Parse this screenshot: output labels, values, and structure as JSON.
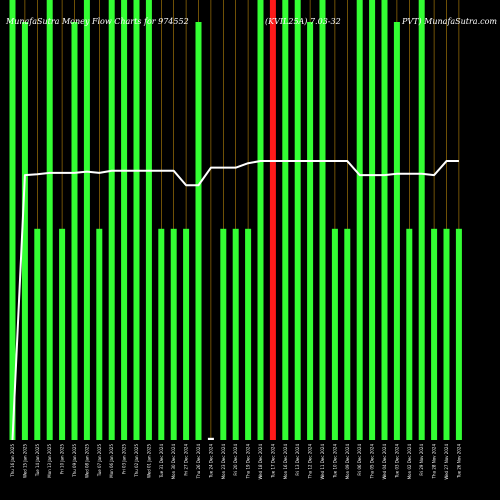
{
  "chart_data": {
    "type": "bar",
    "title_left": "MunafaSutra  Money Flow  Charts for 974552",
    "title_mid": "(KVIL25A) 7.03-32",
    "title_right": "PVT) MunafaSutra.com",
    "categories": [
      "Thu 16 Jan 2025",
      "Wed 15 Jan 2025",
      "Tue 14 Jan 2025",
      "Mon 13 Jan 2025",
      "Fri 10 Jan 2025",
      "Thu 09 Jan 2025",
      "Wed 08 Jan 2025",
      "Tue 07 Jan 2025",
      "Mon 06 Jan 2025",
      "Fri 03 Jan 2025",
      "Thu 02 Jan 2025",
      "Wed 01 Jan 2025",
      "Tue 31 Dec 2024",
      "Mon 30 Dec 2024",
      "Fri 27 Dec 2024",
      "Thu 26 Dec 2024",
      "Tue 24 Dec 2024",
      "Mon 23 Dec 2024",
      "Fri 20 Dec 2024",
      "Thu 19 Dec 2024",
      "Wed 18 Dec 2024",
      "Tue 17 Dec 2024",
      "Mon 16 Dec 2024",
      "Fri 13 Dec 2024",
      "Thu 12 Dec 2024",
      "Wed 11 Dec 2024",
      "Tue 10 Dec 2024",
      "Mon 09 Dec 2024",
      "Fri 06 Dec 2024",
      "Thu 05 Dec 2024",
      "Wed 04 Dec 2024",
      "Tue 03 Dec 2024",
      "Mon 02 Dec 2024",
      "Fri 29 Nov 2024",
      "Thu 28 Nov 2024",
      "Wed 27 Nov 2024",
      "Tue 26 Nov 2024"
    ],
    "values": [
      100,
      95,
      48,
      100,
      48,
      95,
      100,
      48,
      100,
      100,
      100,
      100,
      48,
      48,
      48,
      95,
      0.5,
      48,
      48,
      48,
      100,
      100,
      100,
      100,
      95,
      100,
      48,
      48,
      100,
      100,
      100,
      95,
      48,
      100,
      48,
      48,
      48
    ],
    "bar_colors": [
      "#33ff33",
      "#33ff33",
      "#33ff33",
      "#33ff33",
      "#33ff33",
      "#33ff33",
      "#33ff33",
      "#33ff33",
      "#33ff33",
      "#33ff33",
      "#33ff33",
      "#33ff33",
      "#33ff33",
      "#33ff33",
      "#33ff33",
      "#33ff33",
      "#ffffff",
      "#33ff33",
      "#33ff33",
      "#33ff33",
      "#33ff33",
      "#ff1a1a",
      "#33ff33",
      "#33ff33",
      "#33ff33",
      "#33ff33",
      "#33ff33",
      "#33ff33",
      "#33ff33",
      "#33ff33",
      "#33ff33",
      "#33ff33",
      "#33ff33",
      "#33ff33",
      "#33ff33",
      "#33ff33",
      "#33ff33"
    ],
    "line": [
      0,
      60.2,
      60.4,
      60.7,
      60.7,
      60.7,
      61,
      60.7,
      61.2,
      61.2,
      61.2,
      61.2,
      61.2,
      61.2,
      57.9,
      57.9,
      61.9,
      61.9,
      61.9,
      62.9,
      63.4,
      63.4,
      63.4,
      63.4,
      63.4,
      63.4,
      63.4,
      63.4,
      60.2,
      60.2,
      60.2,
      60.5,
      60.5,
      60.5,
      60.2,
      63.4,
      63.4
    ],
    "ylim": [
      0,
      100
    ],
    "colors": {
      "background": "#000000",
      "positive": "#33ff33",
      "negative": "#ff1a1a",
      "neutral": "#ffffff",
      "line": "#ffffff",
      "grid": "#b8860b"
    }
  }
}
